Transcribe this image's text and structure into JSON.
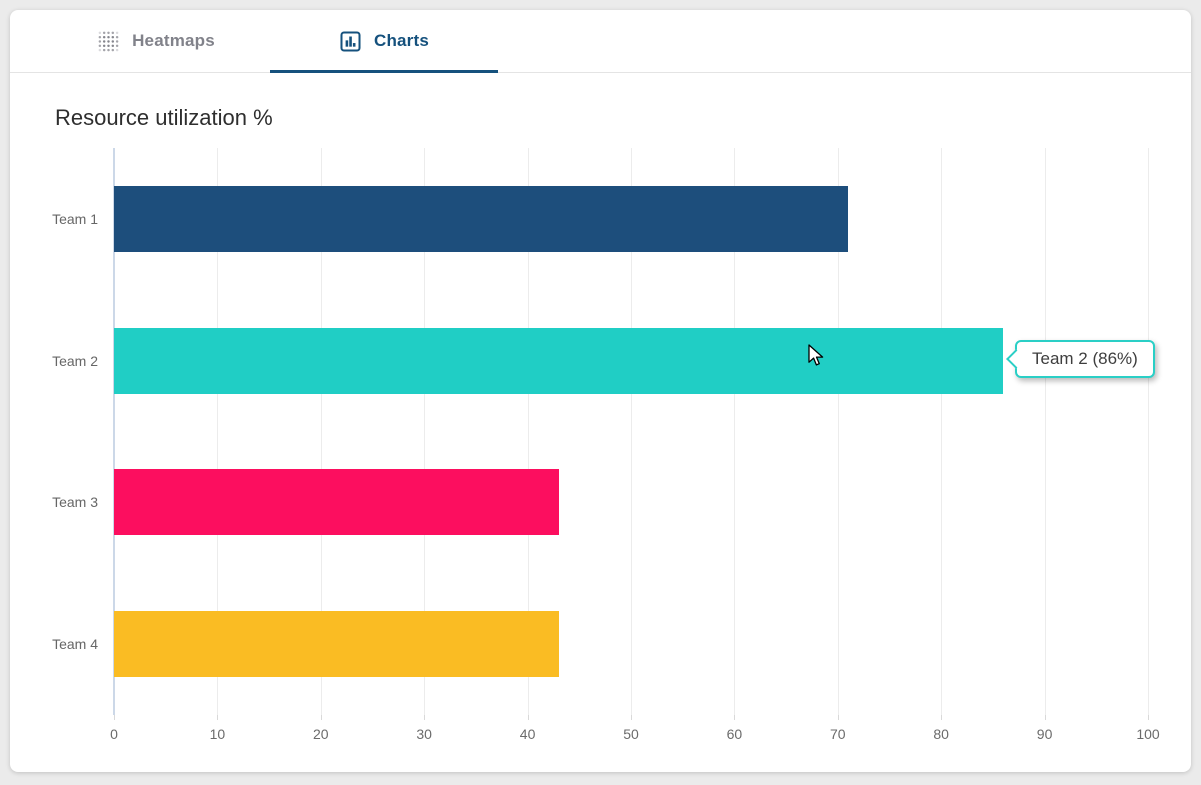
{
  "tabs": [
    {
      "label": "Heatmaps",
      "icon": "heatmap-grid-icon",
      "active": false
    },
    {
      "label": "Charts",
      "icon": "bar-chart-icon",
      "active": true
    }
  ],
  "chart_data": {
    "type": "bar",
    "orientation": "horizontal",
    "title": "Resource utilization %",
    "categories": [
      "Team 1",
      "Team 2",
      "Team 3",
      "Team 4"
    ],
    "values": [
      71,
      86,
      43,
      43
    ],
    "bar_colors": [
      "#1d4e7c",
      "#20cec5",
      "#fc0e5f",
      "#fabc23"
    ],
    "x_ticks": [
      0,
      10,
      20,
      30,
      40,
      50,
      60,
      70,
      80,
      90,
      100
    ],
    "xlim": [
      0,
      100
    ],
    "xlabel": "",
    "ylabel": "",
    "grid": "vertical",
    "legend": "none"
  },
  "tooltip": {
    "text": "Team 2 (86%)",
    "target": "Team 2",
    "border_color": "#2acfc6"
  },
  "cursor": {
    "style": "arrow"
  },
  "colors": {
    "page_bg": "#ebebeb",
    "card_bg": "#ffffff",
    "active_tab": "#15517d",
    "inactive_tab": "#81828a",
    "gridline": "#ececec",
    "axis_line": "#ccd8e8",
    "axis_text": "#6b6b6b"
  }
}
